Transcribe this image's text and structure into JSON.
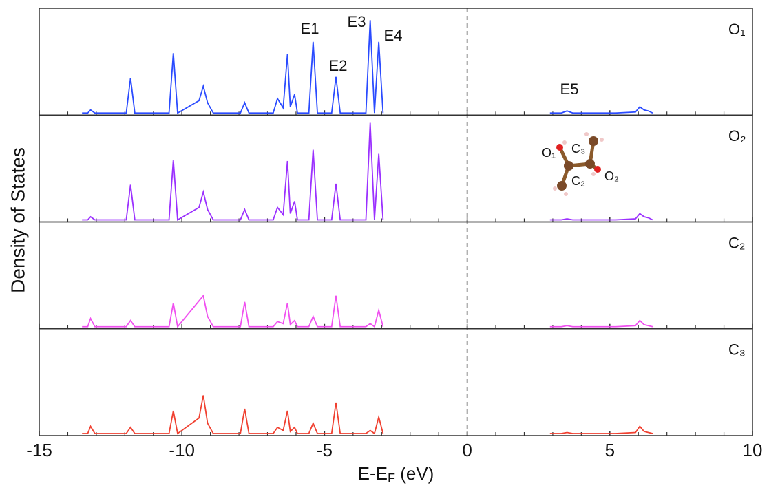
{
  "chart_data": [
    {
      "type": "line",
      "ylabel": "Density of States",
      "annotations": [
        "E1",
        "E2",
        "E3",
        "E4",
        "E5"
      ],
      "x": [
        -13.5,
        -13.3,
        -13.2,
        -13.05,
        -11.95,
        -11.8,
        -11.65,
        -10.45,
        -10.3,
        -10.15,
        -9.4,
        -9.25,
        -9.1,
        -8.9,
        -7.95,
        -7.8,
        -7.65,
        -6.8,
        -6.65,
        -6.45,
        -6.3,
        -6.2,
        -6.05,
        -5.95,
        -5.55,
        -5.4,
        -5.25,
        -4.75,
        -4.6,
        -4.45,
        -3.55,
        -3.4,
        -3.25,
        -3.1,
        -2.95,
        0,
        2.9,
        3.3,
        3.5,
        3.7,
        5.2,
        5.9,
        6.05,
        6.2,
        6.35,
        6.5
      ],
      "ylim": [
        0,
        1
      ],
      "series": [
        {
          "name": "O₁",
          "color": "#2a4bff",
          "values": [
            0,
            0,
            0.03,
            0,
            0,
            0.34,
            0,
            0,
            0.58,
            0,
            0.12,
            0.26,
            0.1,
            0,
            0,
            0.1,
            0,
            0,
            0.14,
            0.05,
            0.57,
            0.06,
            0.18,
            0,
            0,
            0.69,
            0,
            0,
            0.35,
            0,
            0,
            0.9,
            0,
            0.69,
            0,
            null,
            0,
            0,
            0.02,
            0,
            0,
            0.01,
            0.06,
            0.03,
            0.02,
            0
          ]
        }
      ]
    },
    {
      "type": "line",
      "x": [
        -13.5,
        -13.3,
        -13.2,
        -13.05,
        -11.95,
        -11.8,
        -11.65,
        -10.45,
        -10.3,
        -10.15,
        -9.4,
        -9.25,
        -9.1,
        -8.9,
        -7.95,
        -7.8,
        -7.65,
        -6.8,
        -6.65,
        -6.45,
        -6.3,
        -6.2,
        -6.05,
        -5.95,
        -5.55,
        -5.4,
        -5.25,
        -4.75,
        -4.6,
        -4.45,
        -3.55,
        -3.4,
        -3.25,
        -3.1,
        -2.95,
        0,
        2.9,
        3.3,
        3.5,
        3.7,
        5.2,
        5.9,
        6.05,
        6.2,
        6.35,
        6.5
      ],
      "ylim": [
        0,
        1
      ],
      "series": [
        {
          "name": "O₂",
          "color": "#9b30ff",
          "values": [
            0,
            0,
            0.03,
            0,
            0,
            0.34,
            0,
            0,
            0.58,
            0,
            0.12,
            0.27,
            0.1,
            0,
            0,
            0.1,
            0,
            0,
            0.12,
            0.05,
            0.57,
            0.06,
            0.18,
            0,
            0,
            0.68,
            0,
            0,
            0.35,
            0,
            0,
            0.94,
            0,
            0.64,
            0,
            null,
            0,
            0,
            0.01,
            0,
            0,
            0.01,
            0.06,
            0.03,
            0.02,
            0
          ]
        }
      ]
    },
    {
      "type": "line",
      "x": [
        -13.5,
        -13.3,
        -13.2,
        -13.05,
        -11.95,
        -11.8,
        -11.65,
        -10.45,
        -10.3,
        -10.15,
        -9.4,
        -9.25,
        -9.1,
        -8.9,
        -7.95,
        -7.8,
        -7.65,
        -6.8,
        -6.65,
        -6.45,
        -6.3,
        -6.2,
        -6.05,
        -5.95,
        -5.55,
        -5.4,
        -5.25,
        -4.75,
        -4.6,
        -4.45,
        -3.55,
        -3.4,
        -3.25,
        -3.1,
        -2.95,
        0,
        2.9,
        3.3,
        3.5,
        3.7,
        5.2,
        5.9,
        6.05,
        6.2,
        6.35,
        6.5
      ],
      "ylim": [
        0,
        1
      ],
      "series": [
        {
          "name": "C₂",
          "color": "#f050f0",
          "values": [
            0,
            0,
            0.08,
            0,
            0,
            0.06,
            0,
            0,
            0.23,
            0,
            0.25,
            0.3,
            0.1,
            0,
            0,
            0.24,
            0,
            0,
            0.05,
            0.03,
            0.23,
            0.02,
            0.06,
            0,
            0,
            0.1,
            0,
            0,
            0.3,
            0,
            0,
            0.03,
            0,
            0.16,
            0,
            null,
            0,
            0,
            0.01,
            0,
            0,
            0.01,
            0.06,
            0.02,
            0.01,
            0
          ]
        }
      ]
    },
    {
      "type": "line",
      "x": [
        -13.5,
        -13.3,
        -13.2,
        -13.05,
        -11.95,
        -11.8,
        -11.65,
        -10.45,
        -10.3,
        -10.15,
        -9.4,
        -9.25,
        -9.1,
        -8.9,
        -7.95,
        -7.8,
        -7.65,
        -6.8,
        -6.65,
        -6.45,
        -6.3,
        -6.2,
        -6.05,
        -5.95,
        -5.55,
        -5.4,
        -5.25,
        -4.75,
        -4.6,
        -4.45,
        -3.55,
        -3.4,
        -3.25,
        -3.1,
        -2.95,
        0,
        2.9,
        3.3,
        3.5,
        3.7,
        5.2,
        5.9,
        6.05,
        6.2,
        6.35,
        6.5
      ],
      "ylim": [
        0,
        1
      ],
      "xlim": [
        -15,
        10
      ],
      "xticks": [
        -15,
        -10,
        -5,
        0,
        5,
        10
      ],
      "xminorticks": [
        -14,
        -13,
        -12,
        -11,
        -9,
        -8,
        -7,
        -6,
        -4,
        -3,
        -2,
        -1,
        1,
        2,
        3,
        4,
        6,
        7,
        8,
        9
      ],
      "reference_line": 0,
      "xlabel": {
        "main": "E-E",
        "sub": "F",
        "unit": " (eV)"
      },
      "series": [
        {
          "name": "C₃",
          "color": "#f04030",
          "values": [
            0,
            0,
            0.07,
            0,
            0,
            0.06,
            0,
            0,
            0.22,
            0,
            0.15,
            0.37,
            0.1,
            0,
            0,
            0.24,
            0,
            0,
            0.06,
            0.03,
            0.22,
            0.02,
            0.06,
            0,
            0,
            0.1,
            0,
            0,
            0.3,
            0,
            0,
            0.03,
            0,
            0.16,
            0,
            null,
            0,
            0,
            0.01,
            0,
            0,
            0.01,
            0.07,
            0.02,
            0.01,
            0
          ]
        }
      ]
    }
  ],
  "inset": {
    "labels": [
      "O₁",
      "C₃",
      "C₂",
      "O₂"
    ]
  }
}
